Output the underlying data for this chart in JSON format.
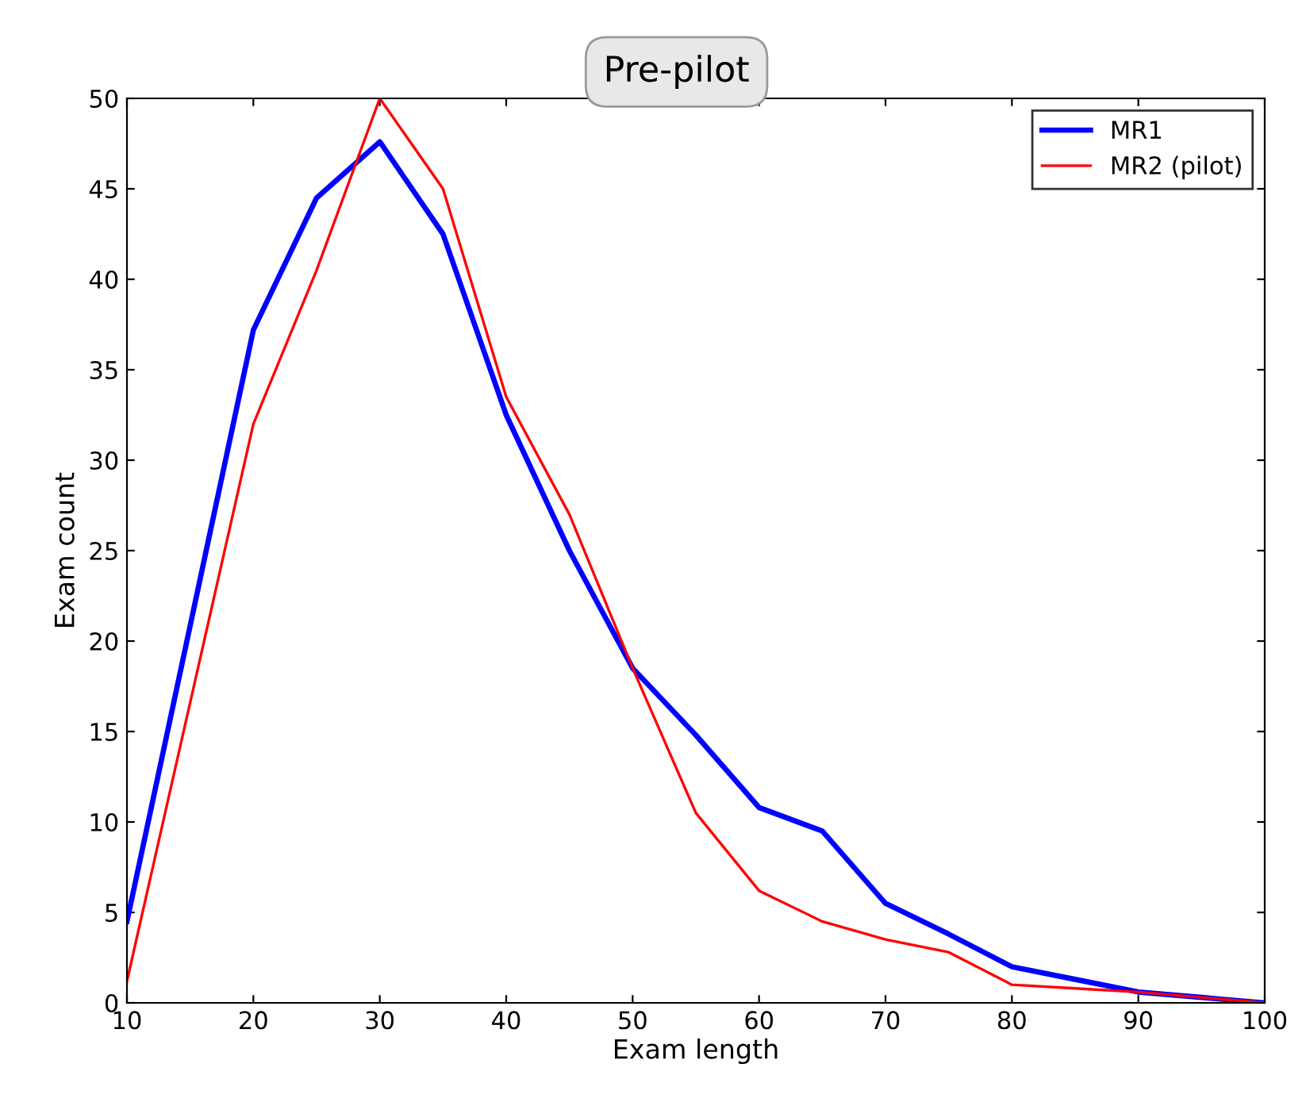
{
  "chart_data": {
    "type": "line",
    "title": "Pre-pilot",
    "xlabel": "Exam length",
    "ylabel": "Exam count",
    "x": [
      10,
      20,
      25,
      30,
      35,
      40,
      45,
      50,
      55,
      60,
      65,
      70,
      75,
      80,
      85,
      90,
      95,
      100
    ],
    "series": [
      {
        "name": "MR1",
        "color": "#0000ff",
        "values": [
          4.5,
          37.2,
          44.5,
          47.6,
          42.5,
          32.5,
          25,
          18.5,
          14.8,
          10.8,
          9.5,
          5.5,
          3.8,
          2,
          1.3,
          0.6,
          0.3,
          0
        ]
      },
      {
        "name": "MR2 (pilot)",
        "color": "#ff0000",
        "values": [
          1.2,
          32,
          40.5,
          50,
          45,
          33.5,
          27,
          18.5,
          10.5,
          6.2,
          4.5,
          3.5,
          2.8,
          1,
          0.8,
          0.6,
          0.3,
          0
        ]
      }
    ],
    "xlim": [
      10,
      100
    ],
    "xticks": [
      10,
      20,
      30,
      40,
      50,
      60,
      70,
      80,
      90,
      100
    ],
    "ylim": [
      0,
      50
    ],
    "yticks": [
      0,
      5,
      10,
      15,
      20,
      25,
      30,
      35,
      40,
      45,
      50
    ],
    "grid": false,
    "legend": "top right",
    "marker": "none",
    "line_style": "solid"
  }
}
